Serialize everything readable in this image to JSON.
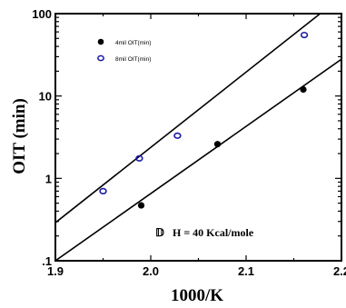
{
  "chart_data": {
    "type": "scatter",
    "title": "",
    "xlabel": "1000/K",
    "ylabel": "OIT (min)",
    "xlim": [
      1.9,
      2.2
    ],
    "ylim": [
      0.1,
      100
    ],
    "yscale": "log",
    "grid": false,
    "legend_position": "top-left",
    "x_ticks": [
      1.9,
      2.0,
      2.1,
      2.2
    ],
    "x_tick_labels": [
      "1.9",
      "2.0",
      "2.1",
      "2.2"
    ],
    "y_ticks": [
      0.1,
      1,
      10,
      100
    ],
    "y_tick_labels": [
      ".1",
      "1",
      "10",
      "100"
    ],
    "series": [
      {
        "name": "4mil OIT(min)",
        "marker": "filled-circle",
        "color": "#000000",
        "x": [
          1.99,
          2.07,
          2.16
        ],
        "y": [
          0.47,
          2.6,
          12
        ]
      },
      {
        "name": "8mil OIT(min)",
        "marker": "open-circle",
        "color": "#1a1aa6",
        "x": [
          1.95,
          1.988,
          2.028,
          2.161
        ],
        "y": [
          0.7,
          1.75,
          3.3,
          55
        ]
      }
    ],
    "fit_lines": [
      {
        "x": [
          1.9,
          2.2
        ],
        "y": [
          0.1,
          28
        ]
      },
      {
        "x": [
          1.9,
          2.2
        ],
        "y": [
          0.29,
          160
        ]
      }
    ],
    "annotation": {
      "symbol": "𝔻",
      "text": "H = 40 Kcal/mole"
    }
  }
}
